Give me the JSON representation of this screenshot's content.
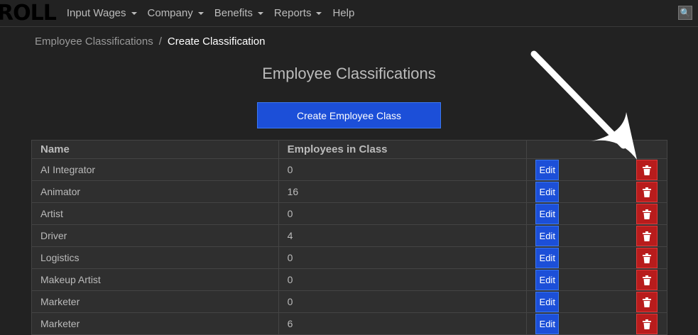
{
  "nav": {
    "brand": "ROLL",
    "items": [
      {
        "label": "Input Wages",
        "dropdown": true
      },
      {
        "label": "Company",
        "dropdown": true
      },
      {
        "label": "Benefits",
        "dropdown": true
      },
      {
        "label": "Reports",
        "dropdown": true
      },
      {
        "label": "Help",
        "dropdown": false
      }
    ],
    "search_icon": "magnifier-icon"
  },
  "breadcrumb": {
    "parent": "Employee Classifications",
    "separator": "/",
    "current": "Create Classification"
  },
  "title": "Employee Classifications",
  "create_button": "Create Employee Class",
  "table": {
    "headers": [
      "Name",
      "Employees in Class",
      ""
    ],
    "edit_label": "Edit",
    "rows": [
      {
        "name": "AI Integrator",
        "count": "0"
      },
      {
        "name": "Animator",
        "count": "16"
      },
      {
        "name": "Artist",
        "count": "0"
      },
      {
        "name": "Driver",
        "count": "4"
      },
      {
        "name": "Logistics",
        "count": "0"
      },
      {
        "name": "Makeup Artist",
        "count": "0"
      },
      {
        "name": "Marketer",
        "count": "0"
      },
      {
        "name": "Marketer",
        "count": "6"
      }
    ]
  },
  "colors": {
    "primary": "#1c4fd8",
    "danger": "#b81c1c",
    "background": "#222222"
  }
}
